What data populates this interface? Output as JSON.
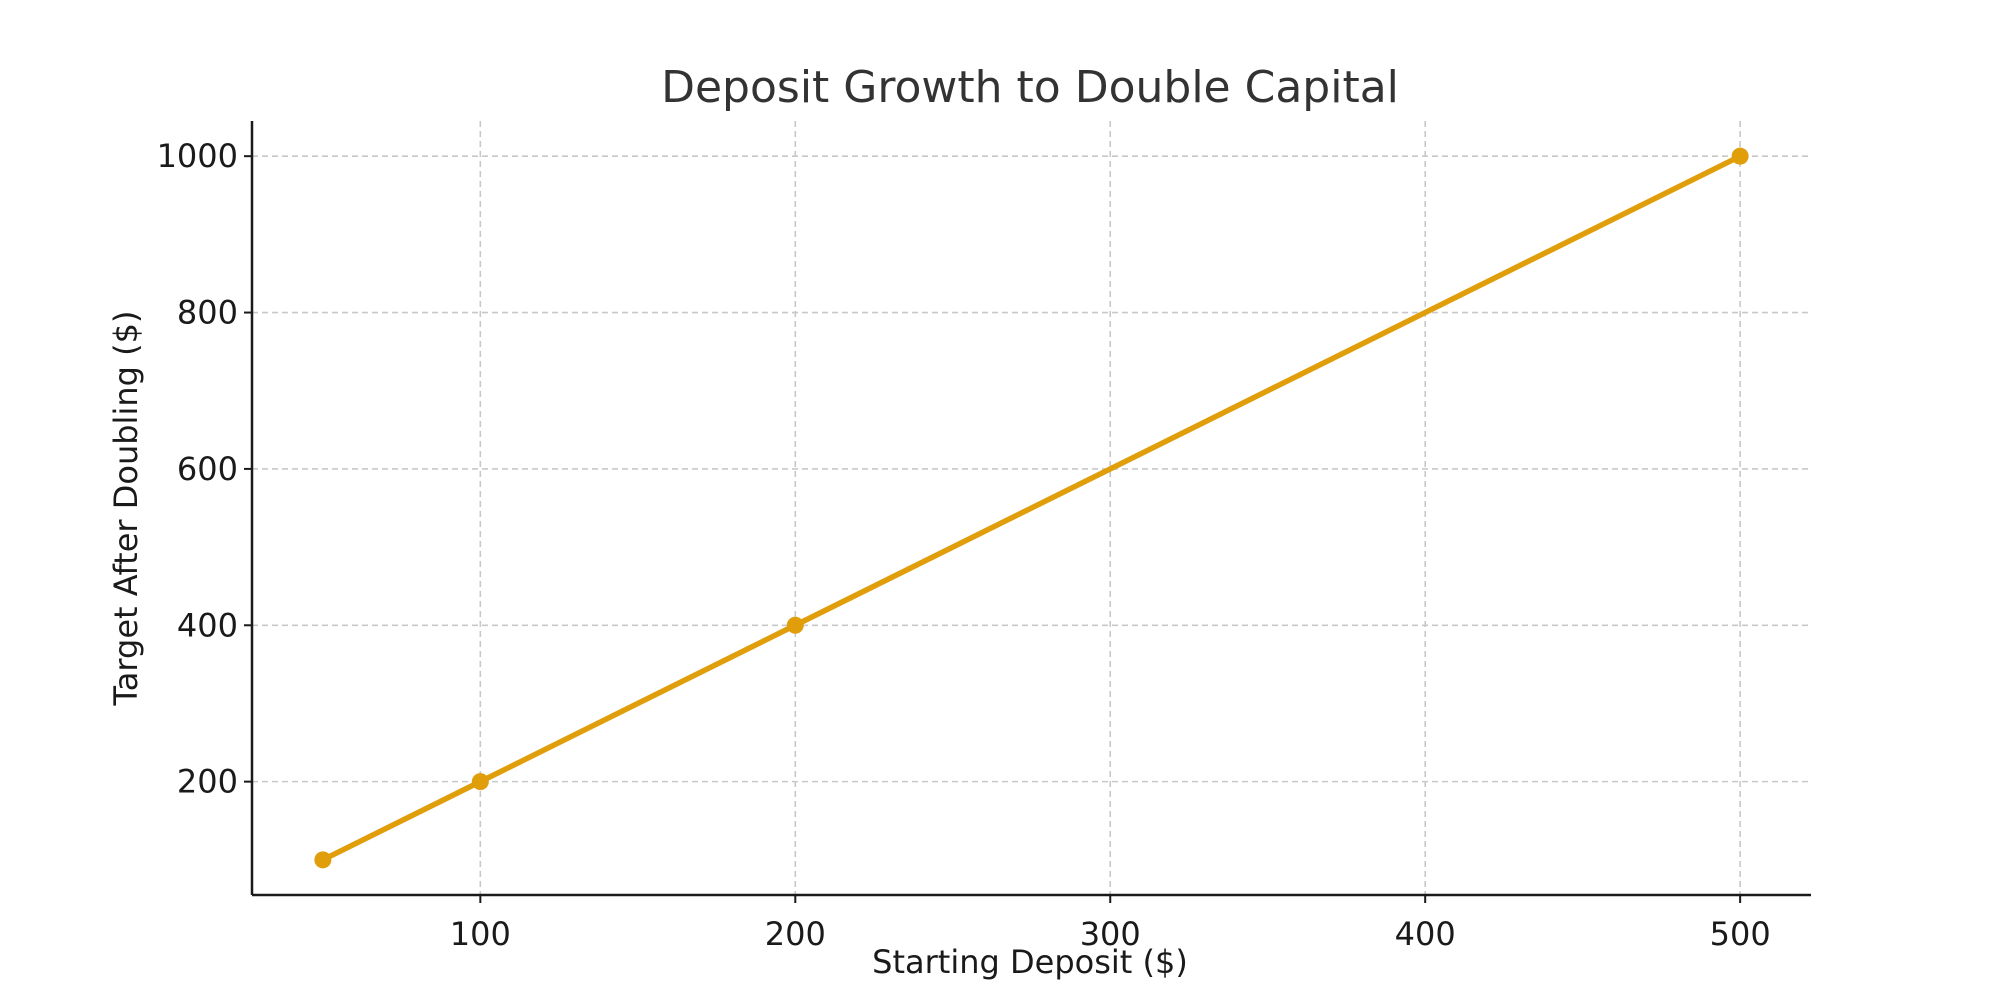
{
  "chart_data": {
    "type": "line",
    "title": "Deposit Growth to Double Capital",
    "xlabel": "Starting Deposit ($)",
    "ylabel": "Target After Doubling ($)",
    "x": [
      50,
      100,
      200,
      500
    ],
    "series": [
      {
        "values": [
          100,
          200,
          400,
          1000
        ],
        "color": "#e09e0b"
      }
    ],
    "xticks": [
      100,
      200,
      300,
      400,
      500
    ],
    "yticks": [
      200,
      400,
      600,
      800,
      1000
    ],
    "xlim": [
      27.5,
      522.5
    ],
    "ylim": [
      55,
      1045
    ],
    "grid": true,
    "legend": "none"
  }
}
